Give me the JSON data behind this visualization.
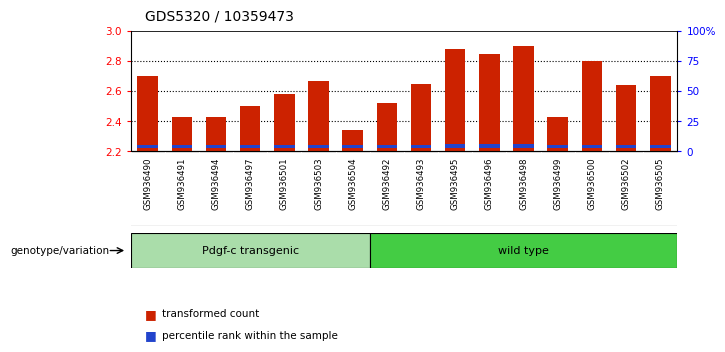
{
  "title": "GDS5320 / 10359473",
  "categories": [
    "GSM936490",
    "GSM936491",
    "GSM936494",
    "GSM936497",
    "GSM936501",
    "GSM936503",
    "GSM936504",
    "GSM936492",
    "GSM936493",
    "GSM936495",
    "GSM936496",
    "GSM936498",
    "GSM936499",
    "GSM936500",
    "GSM936502",
    "GSM936505"
  ],
  "red_values": [
    2.7,
    2.43,
    2.43,
    2.5,
    2.58,
    2.67,
    2.34,
    2.52,
    2.65,
    2.88,
    2.85,
    2.9,
    2.43,
    2.8,
    2.64,
    2.7
  ],
  "blue_values": [
    0.025,
    0.022,
    0.022,
    0.022,
    0.025,
    0.025,
    0.022,
    0.025,
    0.025,
    0.028,
    0.028,
    0.028,
    0.022,
    0.025,
    0.025,
    0.025
  ],
  "blue_bottom": [
    2.22,
    2.22,
    2.22,
    2.22,
    2.22,
    2.22,
    2.22,
    2.22,
    2.22,
    2.22,
    2.22,
    2.22,
    2.22,
    2.22,
    2.22,
    2.22
  ],
  "base": 2.2,
  "ylim_left": [
    2.2,
    3.0
  ],
  "ylim_right": [
    0,
    100
  ],
  "yticks_left": [
    2.2,
    2.4,
    2.6,
    2.8,
    3.0
  ],
  "yticks_right": [
    0,
    25,
    50,
    75,
    100
  ],
  "ytick_labels_right": [
    "0",
    "25",
    "50",
    "75",
    "100%"
  ],
  "group1_label": "Pdgf-c transgenic",
  "group2_label": "wild type",
  "group1_count": 7,
  "group2_count": 9,
  "genotype_label": "genotype/variation",
  "legend_red": "transformed count",
  "legend_blue": "percentile rank within the sample",
  "bar_color_red": "#cc2200",
  "bar_color_blue": "#2244cc",
  "group1_color": "#aaddaa",
  "group2_color": "#44cc44",
  "background_color": "#ffffff",
  "tick_area_color": "#cccccc",
  "dotted_color": "#000000",
  "title_fontsize": 10,
  "axis_fontsize": 7.5,
  "label_fontsize": 8
}
